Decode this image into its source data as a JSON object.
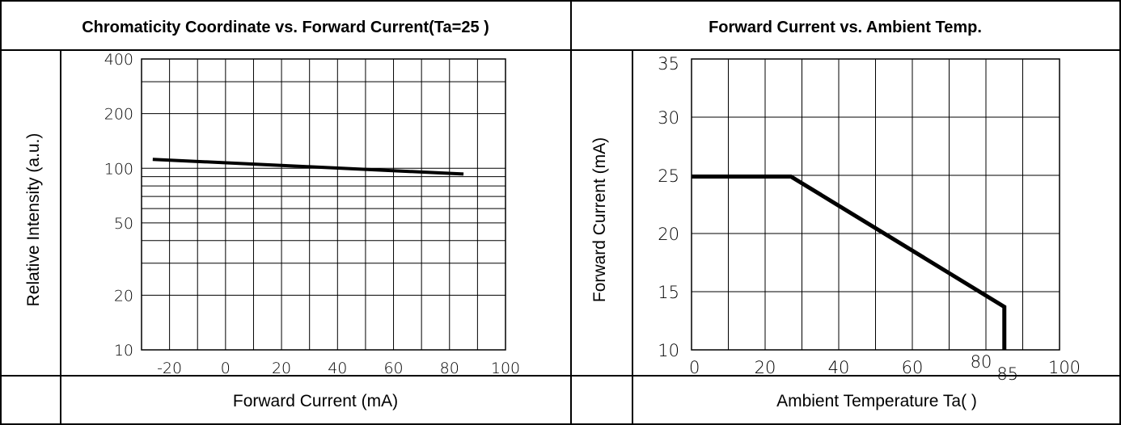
{
  "chart_data": [
    {
      "type": "line",
      "title": "Chromaticity Coordinate vs. Forward Current(Ta=25 )",
      "xlabel": "Forward Current (mA)",
      "ylabel": "Relative Intensity (a.u.)",
      "x_ticks": [
        "-20",
        "0",
        "20",
        "40",
        "60",
        "80",
        "100"
      ],
      "y_ticks": [
        "400",
        "200",
        "100",
        "50",
        "20",
        "10"
      ],
      "y_scale": "log",
      "xlim": [
        -30,
        100
      ],
      "ylim": [
        10,
        400
      ],
      "grid": true,
      "series": [
        {
          "x": [
            -26,
            85
          ],
          "y": [
            112,
            93
          ]
        }
      ]
    },
    {
      "type": "line",
      "title": "Forward Current vs. Ambient Temp.",
      "xlabel": "Ambient Temperature Ta( )",
      "ylabel": "Forward Current (mA)",
      "x_ticks": [
        "0",
        "20",
        "40",
        "60",
        "80",
        "85",
        "100"
      ],
      "y_ticks": [
        "35",
        "30",
        "25",
        "20",
        "15",
        "10"
      ],
      "xlim": [
        0,
        100
      ],
      "ylim": [
        10,
        35
      ],
      "grid": true,
      "series": [
        {
          "x": [
            0,
            27,
            85,
            85
          ],
          "y": [
            24.9,
            24.9,
            13.7,
            10
          ]
        }
      ]
    }
  ]
}
